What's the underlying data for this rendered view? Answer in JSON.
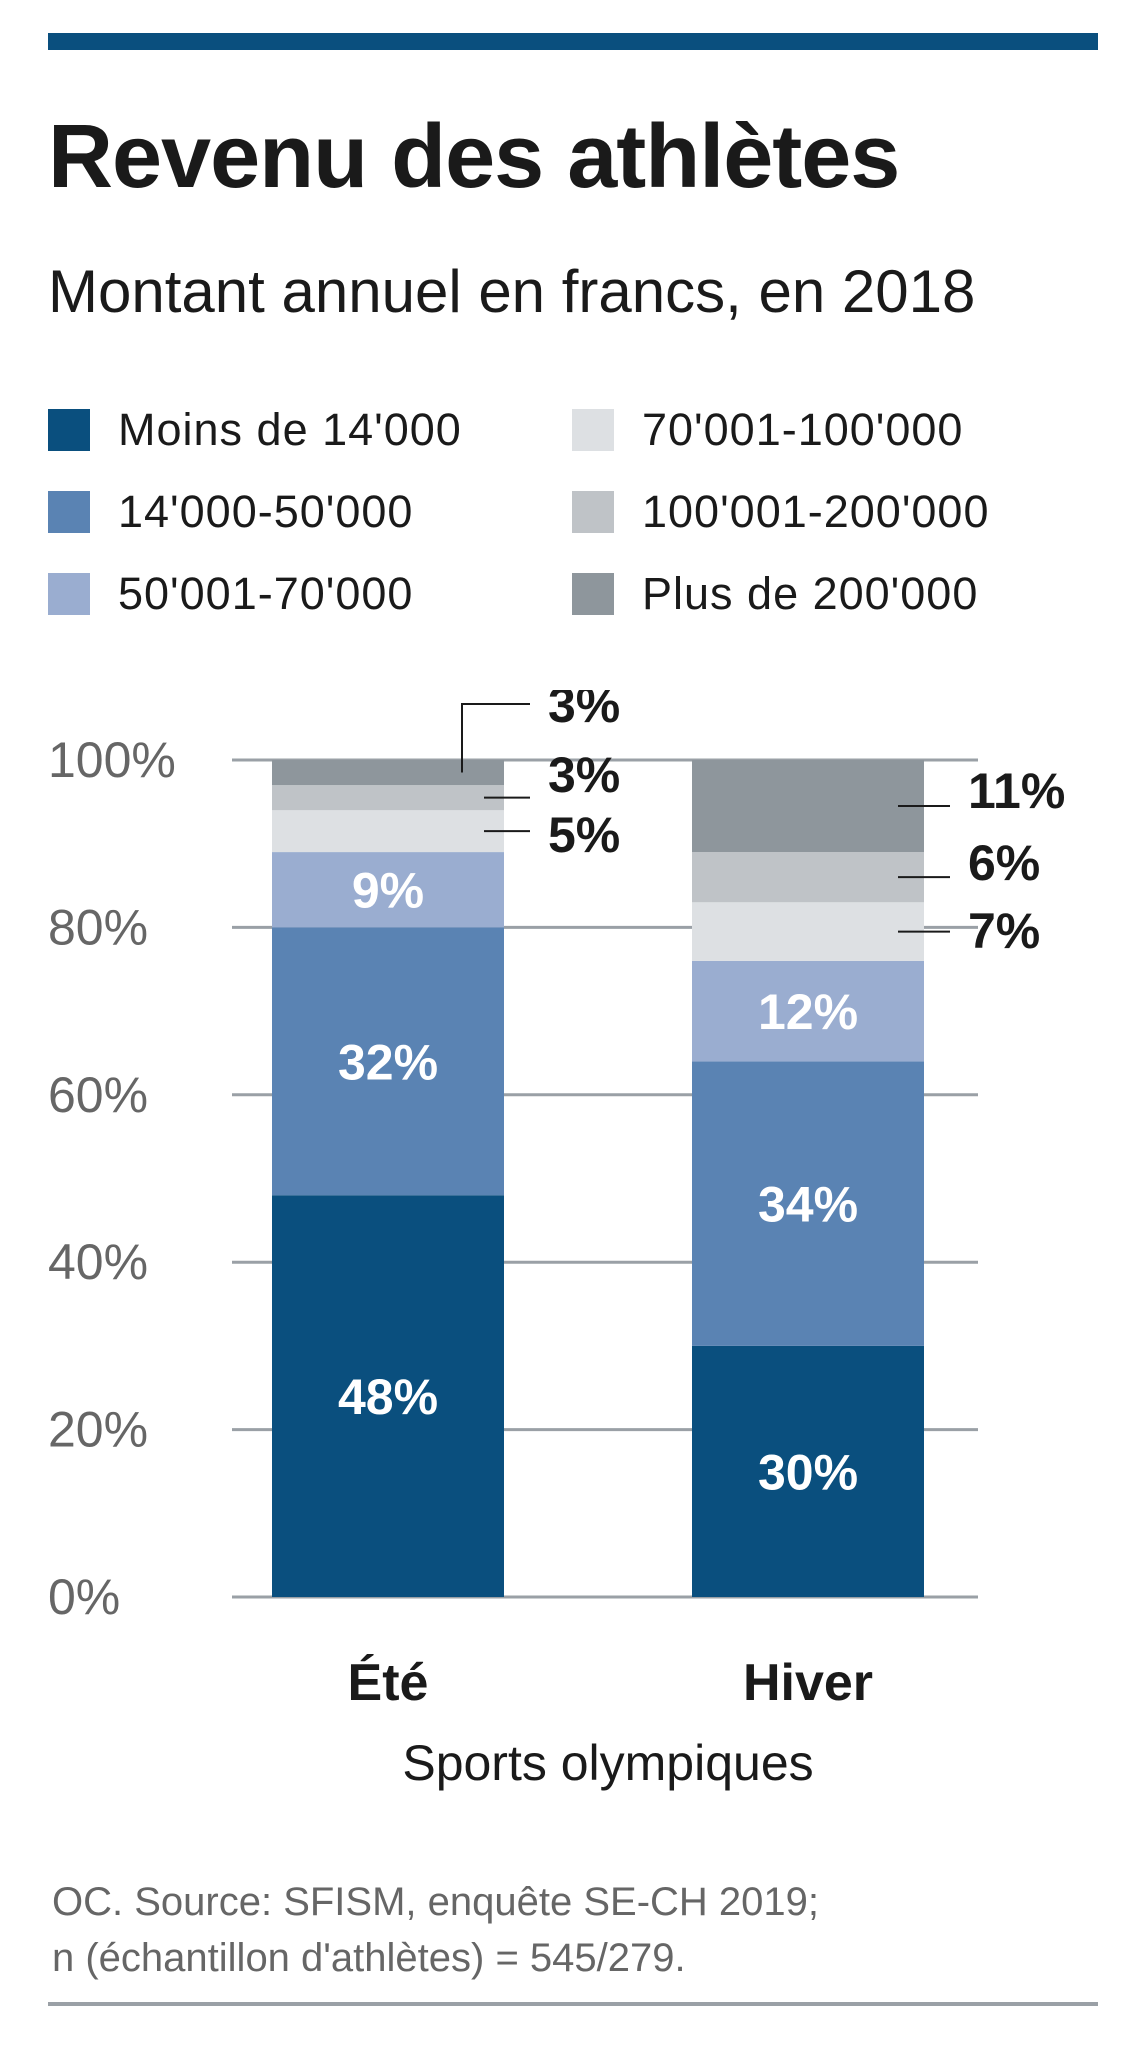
{
  "title": "Revenu des athlètes",
  "subtitle": "Montant annuel en francs, en 2018",
  "source": {
    "line1": "OC. Source: SFISM, enquête SE-CH 2019;",
    "line2": "n (échantillon d'athlètes) = 545/279."
  },
  "colors": {
    "top_rule": "#0a4f7e",
    "gridline": "#9aa0a6",
    "tick_label": "#666666"
  },
  "chart_data": {
    "type": "bar",
    "stacked": true,
    "categories": [
      "Été",
      "Hiver"
    ],
    "xlabel": "Sports olympiques",
    "ylabel": "",
    "ylim": [
      0,
      100
    ],
    "y_ticks": [
      "0%",
      "20%",
      "40%",
      "60%",
      "80%",
      "100%"
    ],
    "grid": true,
    "legend_position": "top",
    "series": [
      {
        "name": "Moins de 14'000",
        "color": "#0a4f7e",
        "values": [
          48,
          30
        ],
        "labels": [
          "48%",
          "30%"
        ]
      },
      {
        "name": "14'000-50'000",
        "color": "#5a83b3",
        "values": [
          32,
          34
        ],
        "labels": [
          "32%",
          "34%"
        ]
      },
      {
        "name": "50'001-70'000",
        "color": "#9aadd0",
        "values": [
          9,
          12
        ],
        "labels": [
          "9%",
          "12%"
        ]
      },
      {
        "name": "70'001-100'000",
        "color": "#dde0e3",
        "values": [
          5,
          7
        ],
        "labels": [
          "5%",
          "7%"
        ]
      },
      {
        "name": "100'001-200'000",
        "color": "#bfc3c7",
        "values": [
          3,
          6
        ],
        "labels": [
          "3%",
          "6%"
        ]
      },
      {
        "name": "Plus de 200'000",
        "color": "#8e969c",
        "values": [
          3,
          11
        ],
        "labels": [
          "3%",
          "11%"
        ]
      }
    ]
  }
}
